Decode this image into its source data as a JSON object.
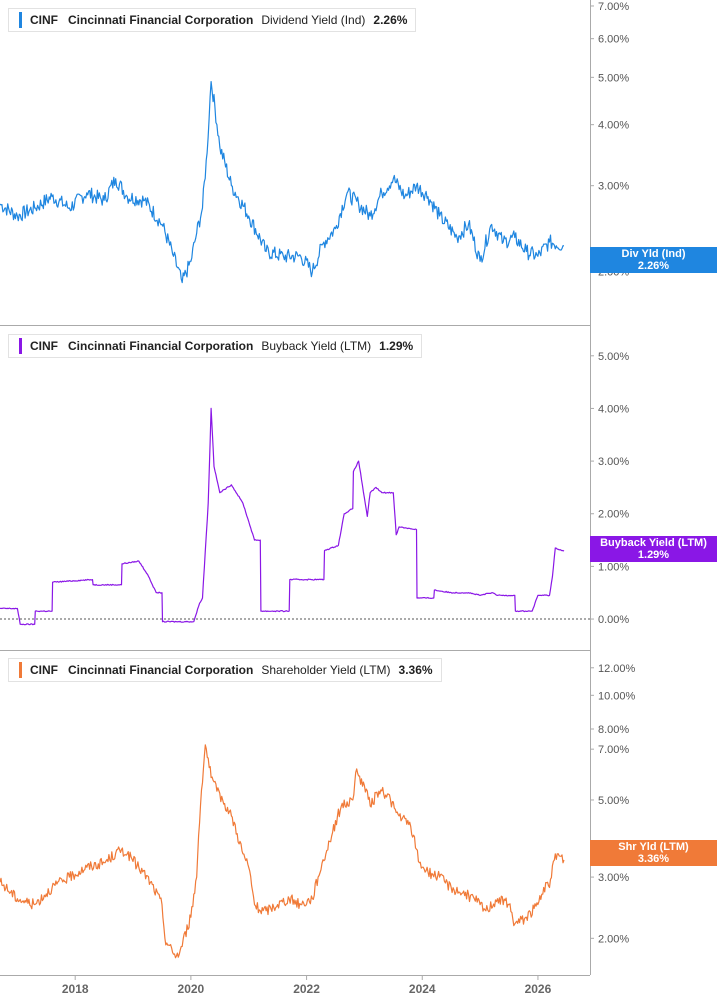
{
  "chart_data": [
    {
      "type": "line",
      "ticker": "CINF",
      "company": "Cincinnati Financial Corporation",
      "metric": "Dividend Yield (Ind)",
      "value_label": "2.26%",
      "tag_label": "Div Yld (Ind)",
      "color": "#1f86e0",
      "yscale": "log",
      "ylim": [
        1.75,
        7.2
      ],
      "yticks": [
        2,
        3,
        4,
        5,
        6,
        7
      ],
      "ytick_labels": [
        "2.00%",
        "3.00%",
        "4.00%",
        "5.00%",
        "6.00%",
        "7.00%"
      ],
      "series": [
        {
          "x": [
            2016.7,
            2017.0,
            2017.3,
            2017.6,
            2017.9,
            2018.2,
            2018.5,
            2018.7,
            2018.9,
            2019.2,
            2019.5,
            2019.7,
            2019.85,
            2020.0,
            2020.1,
            2020.2,
            2020.28,
            2020.35,
            2020.5,
            2020.7,
            2021.0,
            2021.3,
            2021.6,
            2021.9,
            2022.1,
            2022.3,
            2022.5,
            2022.7,
            2022.9,
            2023.1,
            2023.3,
            2023.5,
            2023.7,
            2023.9,
            2024.1,
            2024.3,
            2024.6,
            2024.8,
            2025.0,
            2025.2,
            2025.4,
            2025.6,
            2025.8,
            2026.0,
            2026.2,
            2026.45
          ],
          "y": [
            2.75,
            2.6,
            2.7,
            2.85,
            2.7,
            2.9,
            2.8,
            3.1,
            2.85,
            2.8,
            2.5,
            2.15,
            1.9,
            2.1,
            2.4,
            2.7,
            3.5,
            4.9,
            3.6,
            3.0,
            2.6,
            2.2,
            2.15,
            2.15,
            2.0,
            2.3,
            2.45,
            2.9,
            2.75,
            2.6,
            2.9,
            3.1,
            2.85,
            3.0,
            2.85,
            2.6,
            2.35,
            2.5,
            2.1,
            2.5,
            2.3,
            2.35,
            2.2,
            2.15,
            2.3,
            2.26
          ]
        }
      ]
    },
    {
      "type": "line",
      "ticker": "CINF",
      "company": "Cincinnati Financial Corporation",
      "metric": "Buyback Yield (LTM)",
      "value_label": "1.29%",
      "tag_label": "Buyback Yield (LTM)",
      "tag_value": "1.29%",
      "color": "#8a17e6",
      "yscale": "linear",
      "ylim": [
        -0.55,
        5.3
      ],
      "yticks": [
        0,
        1,
        2,
        3,
        4,
        5
      ],
      "ytick_labels": [
        "0.00%",
        "1.00%",
        "2.00%",
        "3.00%",
        "4.00%",
        "5.00%"
      ],
      "zero_line": true,
      "series": [
        {
          "x": [
            2016.7,
            2017.0,
            2017.05,
            2017.3,
            2017.31,
            2017.6,
            2017.61,
            2018.3,
            2018.31,
            2018.8,
            2018.81,
            2019.1,
            2019.25,
            2019.4,
            2019.5,
            2019.51,
            2020.05,
            2020.15,
            2020.2,
            2020.3,
            2020.35,
            2020.4,
            2020.5,
            2020.7,
            2020.9,
            2021.1,
            2021.2,
            2021.21,
            2021.7,
            2021.71,
            2022.2,
            2022.3,
            2022.31,
            2022.55,
            2022.65,
            2022.8,
            2022.81,
            2022.9,
            2023.05,
            2023.1,
            2023.2,
            2023.3,
            2023.5,
            2023.55,
            2023.6,
            2023.9,
            2023.91,
            2024.2,
            2024.21,
            2024.5,
            2024.8,
            2025.0,
            2025.2,
            2025.3,
            2025.5,
            2025.6,
            2025.61,
            2025.9,
            2026.0,
            2026.1,
            2026.2,
            2026.25,
            2026.3,
            2026.45
          ],
          "y": [
            0.2,
            0.2,
            -0.1,
            -0.1,
            0.15,
            0.15,
            0.7,
            0.75,
            0.65,
            0.65,
            1.05,
            1.1,
            0.85,
            0.5,
            0.5,
            -0.05,
            -0.05,
            0.3,
            0.4,
            2.2,
            4.0,
            2.9,
            2.4,
            2.55,
            2.2,
            1.5,
            1.5,
            0.15,
            0.15,
            0.75,
            0.75,
            0.75,
            1.3,
            1.4,
            2.0,
            2.1,
            2.8,
            3.0,
            1.95,
            2.4,
            2.5,
            2.4,
            2.4,
            1.6,
            1.75,
            1.7,
            0.4,
            0.4,
            0.55,
            0.5,
            0.5,
            0.45,
            0.5,
            0.45,
            0.45,
            0.45,
            0.15,
            0.15,
            0.45,
            0.45,
            0.45,
            0.8,
            1.35,
            1.29
          ]
        }
      ]
    },
    {
      "type": "line",
      "ticker": "CINF",
      "company": "Cincinnati Financial Corporation",
      "metric": "Shareholder Yield (LTM)",
      "value_label": "3.36%",
      "tag_label": "Shr Yld (LTM)",
      "tag_value": "3.36%",
      "color": "#f07a38",
      "yscale": "log",
      "ylim": [
        1.6,
        13.5
      ],
      "yticks": [
        2,
        3,
        5,
        7,
        8,
        10,
        12
      ],
      "ytick_labels": [
        "2.00%",
        "3.00%",
        "5.00%",
        "7.00%",
        "8.00%",
        "10.00%",
        "12.00%"
      ],
      "series": [
        {
          "x": [
            2016.7,
            2017.0,
            2017.3,
            2017.6,
            2017.9,
            2018.2,
            2018.5,
            2018.8,
            2018.9,
            2019.1,
            2019.3,
            2019.5,
            2019.55,
            2019.7,
            2019.8,
            2020.0,
            2020.1,
            2020.25,
            2020.35,
            2020.45,
            2020.55,
            2020.7,
            2020.9,
            2021.0,
            2021.1,
            2021.2,
            2021.3,
            2021.5,
            2021.7,
            2021.9,
            2022.1,
            2022.2,
            2022.4,
            2022.6,
            2022.8,
            2022.85,
            2023.0,
            2023.1,
            2023.25,
            2023.4,
            2023.55,
            2023.6,
            2023.8,
            2023.95,
            2024.1,
            2024.3,
            2024.5,
            2024.7,
            2024.9,
            2025.1,
            2025.3,
            2025.5,
            2025.6,
            2025.8,
            2026.0,
            2026.1,
            2026.2,
            2026.3,
            2026.45
          ],
          "y": [
            2.9,
            2.6,
            2.5,
            2.8,
            3.0,
            3.2,
            3.3,
            3.6,
            3.5,
            3.2,
            2.9,
            2.5,
            2.0,
            1.8,
            1.8,
            2.3,
            3.0,
            7.2,
            5.8,
            5.3,
            5.0,
            4.5,
            3.5,
            3.2,
            2.5,
            2.4,
            2.4,
            2.5,
            2.6,
            2.5,
            2.6,
            3.0,
            3.8,
            4.8,
            5.0,
            6.0,
            5.5,
            4.8,
            5.3,
            5.2,
            4.6,
            4.5,
            4.2,
            3.3,
            3.1,
            3.0,
            2.8,
            2.7,
            2.6,
            2.4,
            2.6,
            2.5,
            2.2,
            2.3,
            2.5,
            2.8,
            2.8,
            3.5,
            3.36
          ]
        }
      ]
    }
  ],
  "x_axis": {
    "ticks": [
      2018,
      2020,
      2022,
      2024,
      2026
    ],
    "tick_labels": [
      "2018",
      "2020",
      "2022",
      "2024",
      "2026"
    ],
    "xlim": [
      2016.7,
      2026.9
    ]
  },
  "colors": {
    "grid": "#dddddd",
    "axis": "#aaaaaa",
    "zero": "#555555",
    "background": "#ffffff"
  }
}
